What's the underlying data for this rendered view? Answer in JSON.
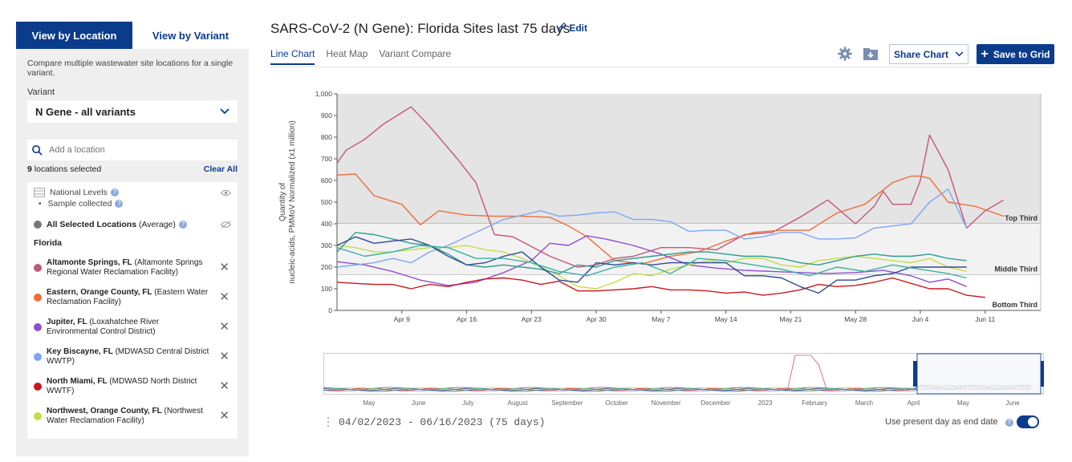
{
  "sidebar": {
    "tabs": [
      {
        "label": "View by Location"
      },
      {
        "label": "View by Variant"
      }
    ],
    "description": "Compare multiple wastewater site locations for a single variant.",
    "variant_label": "Variant",
    "variant_value": "N Gene - all variants",
    "search_placeholder": "Add a location",
    "selected_count": "9",
    "selected_text": "locations selected",
    "clear_all": "Clear All",
    "national_levels": "National Levels",
    "sample_collected": "Sample collected",
    "average_bold": "All Selected Locations",
    "average_rest": "(Average)",
    "state": "Florida",
    "locations": [
      {
        "name": "Altamonte Springs, FL",
        "detail": "(Altamonte Springs Regional Water Reclamation Facility)",
        "color": "#c2577b"
      },
      {
        "name": "Eastern, Orange County, FL",
        "detail": "(Eastern Water Reclamation Facility)",
        "color": "#ee6c3a"
      },
      {
        "name": "Jupiter, FL",
        "detail": "(Loxahatchee River Environmental Control District)",
        "color": "#8e4fcf"
      },
      {
        "name": "Key Biscayne, FL",
        "detail": "(MDWASD Central District WWTP)",
        "color": "#7da7f5"
      },
      {
        "name": "North Miami, FL",
        "detail": "(MDWASD North District WWTF)",
        "color": "#c8181e"
      },
      {
        "name": "Northwest, Orange County, FL",
        "detail": "(Northwest Water Reclamation Facility)",
        "color": "#c6dc4a"
      }
    ]
  },
  "header": {
    "title": "SARS-CoV-2 (N Gene): Florida Sites last 75 days",
    "edit": "Edit",
    "view_tabs": [
      {
        "label": "Line Chart"
      },
      {
        "label": "Heat Map"
      },
      {
        "label": "Variant Compare"
      }
    ],
    "share_chart": "Share Chart",
    "save_to_grid": "Save to Grid",
    "icons": [
      "gear-icon",
      "folder-download-icon"
    ]
  },
  "footer": {
    "date_range": "04/02/2023 - 06/16/2023 (75 days)",
    "present_day_label": "Use present day as end date",
    "present_day_enabled": true
  },
  "navigator": {
    "months": [
      "May",
      "June",
      "July",
      "August",
      "September",
      "October",
      "November",
      "December",
      "2023",
      "February",
      "March",
      "April",
      "May",
      "June"
    ]
  },
  "chart_data": {
    "type": "line",
    "ylabel": "Quantity of nucleic-acids, PMMoV Normalized (x1 million)",
    "ylim": [
      0,
      1000
    ],
    "yticks": [
      "0",
      "100",
      "200",
      "300",
      "400",
      "500",
      "600",
      "700",
      "800",
      "900",
      "1,000"
    ],
    "xlim": [
      0,
      76
    ],
    "xticks": [
      {
        "label": "Apr 9",
        "x": 7
      },
      {
        "label": "Apr 16",
        "x": 14
      },
      {
        "label": "Apr 23",
        "x": 21
      },
      {
        "label": "Apr 30",
        "x": 28
      },
      {
        "label": "May 7",
        "x": 35
      },
      {
        "label": "May 14",
        "x": 42
      },
      {
        "label": "May 21",
        "x": 49
      },
      {
        "label": "May 28",
        "x": 56
      },
      {
        "label": "Jun 4",
        "x": 63
      },
      {
        "label": "Jun 11",
        "x": 70
      }
    ],
    "thirds": [
      {
        "label": "Top Third",
        "min": 400,
        "max": 1000
      },
      {
        "label": "Middle Third",
        "min": 165,
        "max": 400
      },
      {
        "label": "Bottom Third",
        "min": 0,
        "max": 165
      }
    ],
    "grid": false,
    "series": [
      {
        "color": "#c2577b",
        "x": [
          0,
          1,
          3,
          5,
          8,
          10,
          13,
          15,
          17,
          19,
          23,
          26,
          28,
          30,
          32,
          35,
          38,
          41,
          44,
          47,
          50,
          53,
          56,
          58,
          59,
          60,
          62,
          63,
          64,
          66,
          68,
          70,
          72
        ],
        "y": [
          680,
          740,
          790,
          860,
          940,
          850,
          700,
          590,
          350,
          340,
          250,
          200,
          210,
          240,
          250,
          290,
          290,
          280,
          350,
          360,
          430,
          510,
          400,
          480,
          550,
          490,
          490,
          600,
          810,
          650,
          380,
          460,
          510
        ]
      },
      {
        "color": "#ee6c3a",
        "x": [
          0,
          2,
          4,
          7,
          9,
          11,
          14,
          17,
          20,
          23,
          25,
          27,
          30,
          33,
          36,
          39,
          42,
          45,
          48,
          51,
          54,
          57,
          60,
          62,
          63,
          64,
          66,
          69,
          72
        ],
        "y": [
          625,
          630,
          530,
          490,
          395,
          460,
          440,
          435,
          435,
          430,
          390,
          340,
          230,
          215,
          250,
          270,
          320,
          360,
          370,
          370,
          450,
          490,
          590,
          620,
          620,
          610,
          500,
          480,
          435
        ]
      },
      {
        "color": "#8e4fcf",
        "x": [
          0,
          3,
          6,
          9,
          12,
          15,
          18,
          21,
          23,
          25,
          27,
          29,
          32,
          35,
          38,
          41,
          44,
          47,
          50,
          53,
          56,
          59,
          62,
          64,
          66,
          68
        ],
        "y": [
          225,
          210,
          180,
          140,
          115,
          130,
          175,
          230,
          310,
          300,
          345,
          330,
          300,
          260,
          210,
          195,
          185,
          180,
          175,
          170,
          175,
          185,
          160,
          130,
          145,
          110
        ]
      },
      {
        "color": "#7da7f5",
        "x": [
          0,
          2,
          4,
          6,
          8,
          10,
          12,
          14,
          16,
          18,
          20,
          22,
          24,
          26,
          28,
          30,
          32,
          34,
          36,
          38,
          40,
          42,
          44,
          46,
          48,
          50,
          52,
          54,
          56,
          58,
          60,
          62,
          64,
          66,
          68
        ],
        "y": [
          200,
          210,
          220,
          240,
          220,
          270,
          300,
          340,
          380,
          420,
          440,
          460,
          435,
          440,
          450,
          455,
          420,
          420,
          410,
          365,
          370,
          370,
          330,
          340,
          360,
          360,
          330,
          330,
          335,
          380,
          390,
          400,
          500,
          560,
          380
        ]
      },
      {
        "color": "#c8181e",
        "x": [
          0,
          2,
          4,
          6,
          8,
          10,
          12,
          14,
          16,
          18,
          20,
          22,
          24,
          26,
          28,
          30,
          32,
          34,
          36,
          38,
          40,
          42,
          44,
          46,
          48,
          50,
          52,
          54,
          56,
          58,
          60,
          62,
          64,
          66,
          68,
          70
        ],
        "y": [
          130,
          125,
          120,
          120,
          100,
          120,
          110,
          130,
          145,
          150,
          140,
          120,
          135,
          90,
          90,
          95,
          100,
          110,
          95,
          95,
          90,
          80,
          85,
          70,
          80,
          95,
          120,
          110,
          115,
          130,
          150,
          125,
          100,
          100,
          70,
          60
        ]
      },
      {
        "color": "#c6dc4a",
        "x": [
          0,
          2,
          4,
          6,
          8,
          10,
          12,
          14,
          16,
          18,
          20,
          22,
          24,
          26,
          28,
          30,
          32,
          34,
          36,
          38,
          40,
          42,
          44,
          46,
          48,
          50,
          52,
          54,
          56,
          58,
          60,
          62,
          64,
          66,
          68
        ],
        "y": [
          300,
          290,
          270,
          270,
          280,
          290,
          290,
          300,
          280,
          270,
          240,
          200,
          160,
          110,
          100,
          130,
          170,
          160,
          190,
          210,
          230,
          220,
          240,
          240,
          210,
          200,
          230,
          240,
          250,
          240,
          230,
          220,
          240,
          200,
          180
        ]
      },
      {
        "color": "#2e9e8f",
        "x": [
          0,
          2,
          4,
          6,
          8,
          10,
          12,
          14,
          16,
          18,
          20,
          22,
          24,
          26,
          28,
          30,
          32,
          34,
          36,
          38,
          40,
          42,
          44,
          46,
          48,
          50,
          52,
          54,
          56,
          58,
          60,
          62,
          64,
          66,
          68
        ],
        "y": [
          270,
          360,
          350,
          330,
          310,
          300,
          260,
          210,
          200,
          210,
          200,
          190,
          170,
          210,
          200,
          230,
          240,
          250,
          260,
          270,
          270,
          260,
          250,
          250,
          240,
          220,
          210,
          230,
          250,
          260,
          250,
          250,
          260,
          240,
          230
        ]
      },
      {
        "color": "#2f4a94",
        "x": [
          0,
          2,
          4,
          6,
          8,
          10,
          12,
          14,
          16,
          18,
          20,
          22,
          24,
          26,
          28,
          30,
          32,
          34,
          36,
          38,
          40,
          42,
          44,
          46,
          48,
          50,
          52,
          54,
          56,
          58,
          60,
          62,
          64,
          66,
          68
        ],
        "y": [
          300,
          340,
          310,
          320,
          330,
          300,
          250,
          210,
          220,
          250,
          270,
          200,
          140,
          130,
          220,
          210,
          220,
          210,
          220,
          220,
          220,
          220,
          160,
          160,
          150,
          110,
          80,
          140,
          140,
          160,
          170,
          200,
          200,
          200,
          200
        ]
      },
      {
        "color": "#3bb2a2",
        "x": [
          0,
          3,
          6,
          9,
          12,
          15,
          18,
          21,
          24,
          27,
          30,
          33,
          36,
          39,
          42,
          45,
          48,
          51,
          54,
          57,
          60,
          63,
          66,
          68
        ],
        "y": [
          290,
          250,
          270,
          300,
          290,
          240,
          240,
          220,
          180,
          160,
          200,
          220,
          170,
          240,
          230,
          210,
          190,
          160,
          200,
          180,
          210,
          190,
          170,
          150
        ]
      }
    ]
  }
}
